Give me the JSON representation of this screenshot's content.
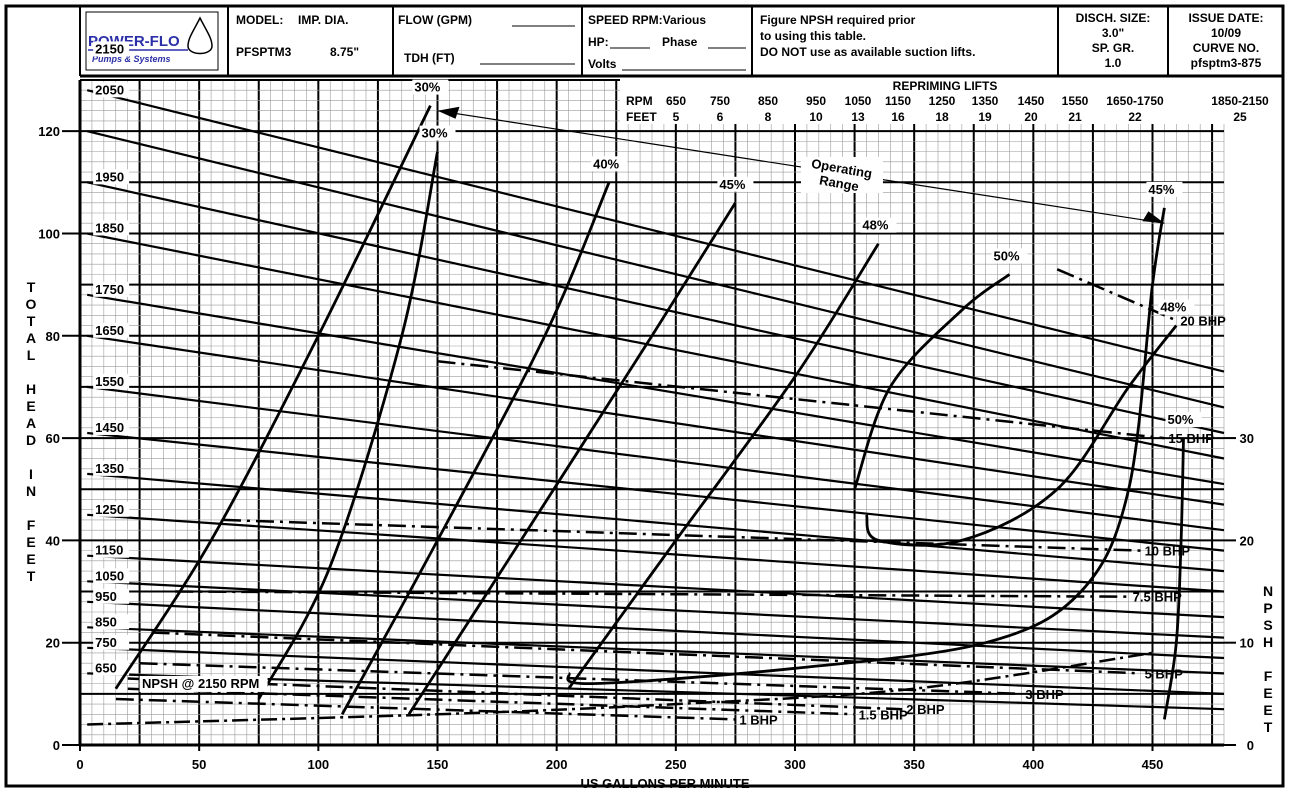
{
  "header": {
    "logo_top": "POWER-FLO",
    "logo_bottom": "Pumps & Systems",
    "model_label": "MODEL:",
    "model_value": "PFSPTM3",
    "imp_dia_label": "IMP. DIA.",
    "imp_dia_value": "8.75\"",
    "flow_label": "FLOW (GPM)",
    "tdh_label": "TDH (FT)",
    "speed_label": "SPEED RPM:Various",
    "hp_label": "HP:",
    "phase_label": "Phase",
    "volts_label": "Volts",
    "npsh_note_1": "Figure NPSH required prior",
    "npsh_note_2": "to using this table.",
    "npsh_note_3": "DO NOT use as available suction lifts.",
    "disch_label": "DISCH. SIZE:",
    "disch_value": "3.0\"",
    "spgr_label": "SP. GR.",
    "spgr_value": "1.0",
    "issue_label": "ISSUE DATE:",
    "issue_value": "10/09",
    "curve_label": "CURVE NO.",
    "curve_value": "pfsptm3-875"
  },
  "repriming": {
    "title": "REPRIMING LIFTS",
    "rpm_label": "RPM",
    "feet_label": "FEET",
    "rpm": [
      "650",
      "750",
      "850",
      "950",
      "1050",
      "1150",
      "1250",
      "1350",
      "1450",
      "1550",
      "1650-1750",
      "1850-2150"
    ],
    "feet": [
      "5",
      "6",
      "8",
      "10",
      "13",
      "16",
      "18",
      "19",
      "20",
      "21",
      "22",
      "25"
    ]
  },
  "chart_data": {
    "type": "line",
    "xlabel": "US GALLONS PER MINUTE",
    "ylabel": "TOTAL HEAD IN FEET",
    "y2label": "NPSH FEET",
    "xlim": [
      0,
      480
    ],
    "ylim": [
      0,
      130
    ],
    "x_ticks": [
      0,
      50,
      100,
      150,
      200,
      250,
      300,
      350,
      400,
      450
    ],
    "y_ticks": [
      0,
      20,
      40,
      60,
      80,
      100,
      120
    ],
    "y2_ticks": [
      0,
      10,
      20,
      30
    ],
    "grid": true,
    "speed_curves": [
      {
        "name": "2150",
        "points": [
          [
            3,
            128
          ],
          [
            480,
            73
          ]
        ]
      },
      {
        "name": "2050",
        "points": [
          [
            3,
            120
          ],
          [
            480,
            66
          ]
        ]
      },
      {
        "name": "1950",
        "points": [
          [
            3,
            110
          ],
          [
            480,
            61
          ]
        ]
      },
      {
        "name": "1850",
        "points": [
          [
            3,
            100
          ],
          [
            480,
            56
          ]
        ]
      },
      {
        "name": "1750",
        "points": [
          [
            3,
            88
          ],
          [
            480,
            51
          ]
        ]
      },
      {
        "name": "1650",
        "points": [
          [
            3,
            80
          ],
          [
            480,
            47
          ]
        ]
      },
      {
        "name": "1550",
        "points": [
          [
            3,
            70
          ],
          [
            480,
            42
          ]
        ]
      },
      {
        "name": "1450",
        "points": [
          [
            3,
            61
          ],
          [
            480,
            38
          ]
        ]
      },
      {
        "name": "1350",
        "points": [
          [
            3,
            53
          ],
          [
            480,
            34
          ]
        ]
      },
      {
        "name": "1250",
        "points": [
          [
            3,
            45
          ],
          [
            480,
            30
          ]
        ]
      },
      {
        "name": "1150",
        "points": [
          [
            3,
            37
          ],
          [
            480,
            25
          ]
        ]
      },
      {
        "name": "1050",
        "points": [
          [
            3,
            32
          ],
          [
            480,
            21
          ]
        ]
      },
      {
        "name": "950",
        "points": [
          [
            3,
            28
          ],
          [
            480,
            17
          ]
        ]
      },
      {
        "name": "850",
        "points": [
          [
            3,
            23
          ],
          [
            480,
            14
          ]
        ]
      },
      {
        "name": "750",
        "points": [
          [
            3,
            19
          ],
          [
            480,
            10
          ]
        ]
      },
      {
        "name": "650",
        "points": [
          [
            3,
            14
          ],
          [
            480,
            7
          ]
        ]
      }
    ],
    "efficiency_curves": [
      {
        "name": "30%",
        "points": [
          [
            15,
            11
          ],
          [
            55,
            40
          ],
          [
            100,
            80
          ],
          [
            147,
            125
          ]
        ]
      },
      {
        "name": "30%",
        "points": [
          [
            75,
            9
          ],
          [
            105,
            35
          ],
          [
            135,
            80
          ],
          [
            150,
            116
          ]
        ]
      },
      {
        "name": "40%",
        "points": [
          [
            110,
            6
          ],
          [
            150,
            40
          ],
          [
            195,
            80
          ],
          [
            222,
            110
          ]
        ]
      },
      {
        "name": "45%",
        "points": [
          [
            138,
            6
          ],
          [
            185,
            40
          ],
          [
            240,
            80
          ],
          [
            275,
            106
          ]
        ]
      },
      {
        "name": "48%",
        "points": [
          [
            205,
            11
          ],
          [
            250,
            40
          ],
          [
            300,
            72
          ],
          [
            335,
            98
          ]
        ]
      },
      {
        "name": "50%",
        "points": [
          [
            325,
            50
          ],
          [
            340,
            70
          ],
          [
            370,
            85
          ],
          [
            390,
            92
          ]
        ]
      },
      {
        "name": "45%",
        "points": [
          [
            205,
            14
          ],
          [
            215,
            12
          ],
          [
            300,
            15
          ],
          [
            380,
            20
          ],
          [
            420,
            30
          ],
          [
            440,
            50
          ],
          [
            450,
            90
          ],
          [
            455,
            105
          ]
        ]
      },
      {
        "name": "48%",
        "points": [
          [
            330,
            45
          ],
          [
            335,
            40
          ],
          [
            370,
            40
          ],
          [
            410,
            50
          ],
          [
            440,
            70
          ],
          [
            460,
            82
          ]
        ]
      },
      {
        "name": "50%",
        "points": [
          [
            455,
            5
          ],
          [
            460,
            20
          ],
          [
            462,
            40
          ],
          [
            463,
            60
          ]
        ]
      }
    ],
    "power_lines": [
      {
        "name": "20 BHP",
        "points": [
          [
            410,
            93
          ],
          [
            460,
            83
          ]
        ]
      },
      {
        "name": "15 BHP",
        "points": [
          [
            150,
            75
          ],
          [
            455,
            60
          ]
        ]
      },
      {
        "name": "10 BHP",
        "points": [
          [
            60,
            44
          ],
          [
            445,
            38
          ]
        ]
      },
      {
        "name": "7.5 BHP",
        "points": [
          [
            40,
            30
          ],
          [
            440,
            29
          ]
        ]
      },
      {
        "name": "5 BHP",
        "points": [
          [
            30,
            22
          ],
          [
            445,
            14
          ]
        ]
      },
      {
        "name": "3 BHP",
        "points": [
          [
            25,
            16
          ],
          [
            395,
            10
          ]
        ]
      },
      {
        "name": "2 BHP",
        "points": [
          [
            20,
            13
          ],
          [
            345,
            7
          ]
        ]
      },
      {
        "name": "1.5 BHP",
        "points": [
          [
            20,
            11
          ],
          [
            325,
            6
          ]
        ]
      },
      {
        "name": "1 BHP",
        "points": [
          [
            15,
            9
          ],
          [
            275,
            5
          ]
        ]
      }
    ],
    "npsh_curve": {
      "name": "NPSH @ 2150 RPM",
      "points": [
        [
          3,
          4
        ],
        [
          150,
          6
        ],
        [
          250,
          8
        ],
        [
          350,
          11
        ],
        [
          450,
          18
        ]
      ]
    },
    "operating_range": {
      "label_1": "Operating",
      "label_2": "Range",
      "from": [
        150,
        124
      ],
      "to": [
        455,
        102
      ]
    }
  }
}
